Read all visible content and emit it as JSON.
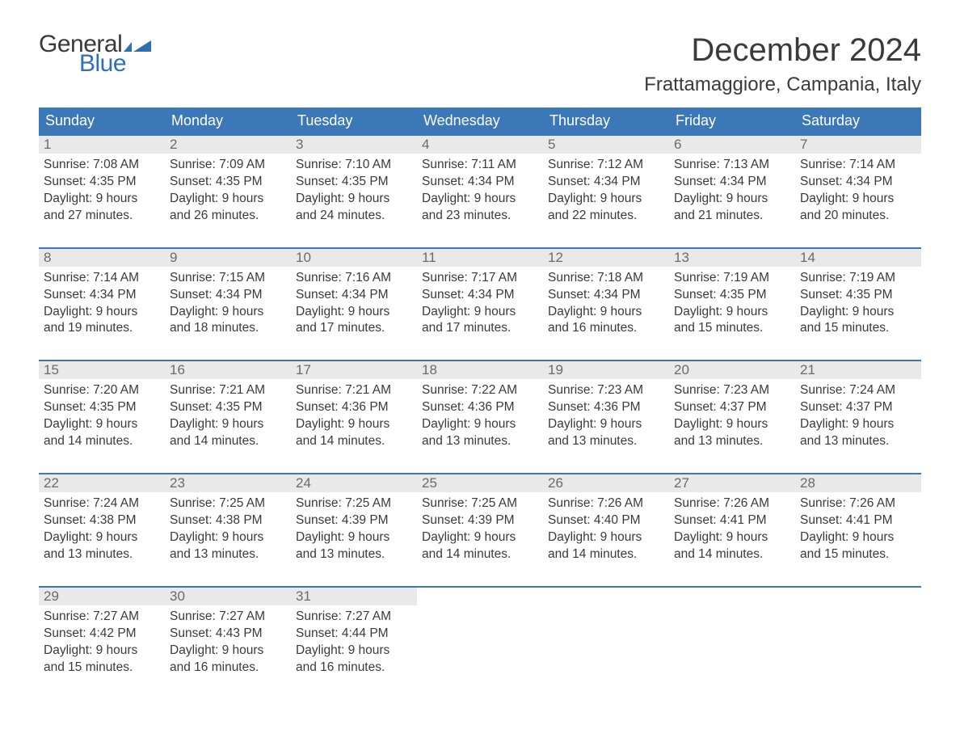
{
  "brand": {
    "word1": "General",
    "word2": "Blue",
    "flag_color": "#2f6fb3",
    "text_color": "#3a3a3a"
  },
  "title": "December 2024",
  "location": "Frattamaggiore, Campania, Italy",
  "colors": {
    "header_bg": "#3b78b8",
    "header_text": "#ffffff",
    "daynum_bg": "#e9e9e9",
    "daynum_text": "#6a6a6a",
    "week_border": "#3b78b8",
    "body_text": "#3a3a3a",
    "page_bg": "#ffffff"
  },
  "fonts": {
    "title_size_pt": 30,
    "location_size_pt": 18,
    "weekday_size_pt": 13,
    "body_size_pt": 11
  },
  "weekdays": [
    "Sunday",
    "Monday",
    "Tuesday",
    "Wednesday",
    "Thursday",
    "Friday",
    "Saturday"
  ],
  "labels": {
    "sunrise": "Sunrise:",
    "sunset": "Sunset:",
    "daylight": "Daylight:"
  },
  "weeks": [
    [
      {
        "n": "1",
        "sunrise": "7:08 AM",
        "sunset": "4:35 PM",
        "daylight": "9 hours and 27 minutes."
      },
      {
        "n": "2",
        "sunrise": "7:09 AM",
        "sunset": "4:35 PM",
        "daylight": "9 hours and 26 minutes."
      },
      {
        "n": "3",
        "sunrise": "7:10 AM",
        "sunset": "4:35 PM",
        "daylight": "9 hours and 24 minutes."
      },
      {
        "n": "4",
        "sunrise": "7:11 AM",
        "sunset": "4:34 PM",
        "daylight": "9 hours and 23 minutes."
      },
      {
        "n": "5",
        "sunrise": "7:12 AM",
        "sunset": "4:34 PM",
        "daylight": "9 hours and 22 minutes."
      },
      {
        "n": "6",
        "sunrise": "7:13 AM",
        "sunset": "4:34 PM",
        "daylight": "9 hours and 21 minutes."
      },
      {
        "n": "7",
        "sunrise": "7:14 AM",
        "sunset": "4:34 PM",
        "daylight": "9 hours and 20 minutes."
      }
    ],
    [
      {
        "n": "8",
        "sunrise": "7:14 AM",
        "sunset": "4:34 PM",
        "daylight": "9 hours and 19 minutes."
      },
      {
        "n": "9",
        "sunrise": "7:15 AM",
        "sunset": "4:34 PM",
        "daylight": "9 hours and 18 minutes."
      },
      {
        "n": "10",
        "sunrise": "7:16 AM",
        "sunset": "4:34 PM",
        "daylight": "9 hours and 17 minutes."
      },
      {
        "n": "11",
        "sunrise": "7:17 AM",
        "sunset": "4:34 PM",
        "daylight": "9 hours and 17 minutes."
      },
      {
        "n": "12",
        "sunrise": "7:18 AM",
        "sunset": "4:34 PM",
        "daylight": "9 hours and 16 minutes."
      },
      {
        "n": "13",
        "sunrise": "7:19 AM",
        "sunset": "4:35 PM",
        "daylight": "9 hours and 15 minutes."
      },
      {
        "n": "14",
        "sunrise": "7:19 AM",
        "sunset": "4:35 PM",
        "daylight": "9 hours and 15 minutes."
      }
    ],
    [
      {
        "n": "15",
        "sunrise": "7:20 AM",
        "sunset": "4:35 PM",
        "daylight": "9 hours and 14 minutes."
      },
      {
        "n": "16",
        "sunrise": "7:21 AM",
        "sunset": "4:35 PM",
        "daylight": "9 hours and 14 minutes."
      },
      {
        "n": "17",
        "sunrise": "7:21 AM",
        "sunset": "4:36 PM",
        "daylight": "9 hours and 14 minutes."
      },
      {
        "n": "18",
        "sunrise": "7:22 AM",
        "sunset": "4:36 PM",
        "daylight": "9 hours and 13 minutes."
      },
      {
        "n": "19",
        "sunrise": "7:23 AM",
        "sunset": "4:36 PM",
        "daylight": "9 hours and 13 minutes."
      },
      {
        "n": "20",
        "sunrise": "7:23 AM",
        "sunset": "4:37 PM",
        "daylight": "9 hours and 13 minutes."
      },
      {
        "n": "21",
        "sunrise": "7:24 AM",
        "sunset": "4:37 PM",
        "daylight": "9 hours and 13 minutes."
      }
    ],
    [
      {
        "n": "22",
        "sunrise": "7:24 AM",
        "sunset": "4:38 PM",
        "daylight": "9 hours and 13 minutes."
      },
      {
        "n": "23",
        "sunrise": "7:25 AM",
        "sunset": "4:38 PM",
        "daylight": "9 hours and 13 minutes."
      },
      {
        "n": "24",
        "sunrise": "7:25 AM",
        "sunset": "4:39 PM",
        "daylight": "9 hours and 13 minutes."
      },
      {
        "n": "25",
        "sunrise": "7:25 AM",
        "sunset": "4:39 PM",
        "daylight": "9 hours and 14 minutes."
      },
      {
        "n": "26",
        "sunrise": "7:26 AM",
        "sunset": "4:40 PM",
        "daylight": "9 hours and 14 minutes."
      },
      {
        "n": "27",
        "sunrise": "7:26 AM",
        "sunset": "4:41 PM",
        "daylight": "9 hours and 14 minutes."
      },
      {
        "n": "28",
        "sunrise": "7:26 AM",
        "sunset": "4:41 PM",
        "daylight": "9 hours and 15 minutes."
      }
    ],
    [
      {
        "n": "29",
        "sunrise": "7:27 AM",
        "sunset": "4:42 PM",
        "daylight": "9 hours and 15 minutes."
      },
      {
        "n": "30",
        "sunrise": "7:27 AM",
        "sunset": "4:43 PM",
        "daylight": "9 hours and 16 minutes."
      },
      {
        "n": "31",
        "sunrise": "7:27 AM",
        "sunset": "4:44 PM",
        "daylight": "9 hours and 16 minutes."
      },
      {
        "empty": true
      },
      {
        "empty": true
      },
      {
        "empty": true
      },
      {
        "empty": true
      }
    ]
  ]
}
